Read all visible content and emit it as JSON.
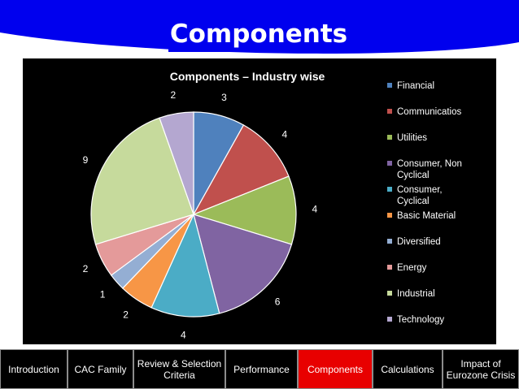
{
  "slide": {
    "title": "Components",
    "banner_color": "#0000ee"
  },
  "chart_data": {
    "type": "pie",
    "title": "Components – Industry wise",
    "categories": [
      "Financial",
      "Communicatios",
      "Utilities",
      "Consumer, Non Cyclical",
      "Consumer, Cyclical",
      "Basic Material",
      "Diversified",
      "Energy",
      "Industrial",
      "Technology"
    ],
    "values": [
      3,
      4,
      4,
      6,
      4,
      2,
      1,
      2,
      9,
      2
    ],
    "colors": [
      "#4f81bd",
      "#c0504d",
      "#9bbb59",
      "#8064a2",
      "#4bacc6",
      "#f79646",
      "#94aed3",
      "#e49a9a",
      "#c6da9c",
      "#b4a7d0"
    ],
    "legend_position": "right",
    "data_labels": true
  },
  "nav": {
    "items": [
      {
        "label": "Introduction"
      },
      {
        "label": "CAC Family"
      },
      {
        "label": "Review & Selection Criteria"
      },
      {
        "label": "Performance"
      },
      {
        "label": "Components",
        "active": true
      },
      {
        "label": "Calculations"
      },
      {
        "label": "Impact of Eurozone Crisis"
      }
    ],
    "active_color": "#e80000"
  }
}
